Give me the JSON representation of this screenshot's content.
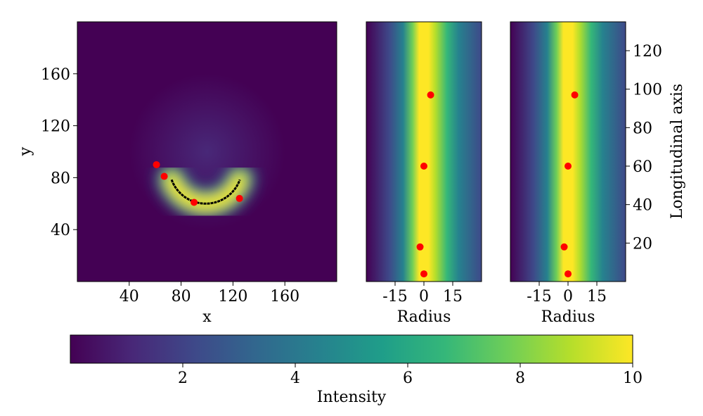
{
  "colors": {
    "viridis": [
      "#440154",
      "#482878",
      "#3e4989",
      "#31688e",
      "#26828e",
      "#1f9e89",
      "#35b779",
      "#6ece58",
      "#b5de2b",
      "#fde725"
    ],
    "curve": "#000000",
    "marker": "#ff0000"
  },
  "chart_data": [
    {
      "id": "xy-map",
      "type": "heatmap",
      "xlabel": "x",
      "ylabel": "y",
      "xlim": [
        0,
        200
      ],
      "ylim": [
        0,
        200
      ],
      "xticks": [
        40,
        80,
        120,
        160
      ],
      "yticks": [
        40,
        80,
        120,
        160
      ],
      "arc": {
        "center": [
          99,
          88
        ],
        "radius": 28,
        "from_angle_deg": 200,
        "to_angle_deg": 340
      },
      "markers": [
        {
          "x": 61,
          "y": 90
        },
        {
          "x": 67,
          "y": 81
        },
        {
          "x": 90,
          "y": 61
        },
        {
          "x": 125,
          "y": 64
        }
      ]
    },
    {
      "id": "straightened-1",
      "type": "heatmap",
      "xlabel": "Radius",
      "xlim": [
        -30,
        30
      ],
      "ylim": [
        0,
        135
      ],
      "xticks": [
        -15,
        0,
        15
      ],
      "markers": [
        {
          "x": 3.5,
          "y": 97
        },
        {
          "x": 0,
          "y": 60
        },
        {
          "x": -2,
          "y": 18
        },
        {
          "x": 0,
          "y": 4
        }
      ]
    },
    {
      "id": "straightened-2",
      "type": "heatmap",
      "xlabel": "Radius",
      "ylabel": "Longitudinal axis",
      "xlim": [
        -30,
        30
      ],
      "ylim": [
        0,
        135
      ],
      "xticks": [
        -15,
        0,
        15
      ],
      "yticks": [
        20,
        40,
        60,
        80,
        100,
        120
      ],
      "markers": [
        {
          "x": 3.5,
          "y": 97
        },
        {
          "x": 0,
          "y": 60
        },
        {
          "x": -2,
          "y": 18
        },
        {
          "x": 0,
          "y": 4
        }
      ]
    },
    {
      "id": "colorbar",
      "type": "colorbar",
      "label": "Intensity",
      "range": [
        0,
        10
      ],
      "ticks": [
        2,
        4,
        6,
        8,
        10
      ]
    }
  ]
}
